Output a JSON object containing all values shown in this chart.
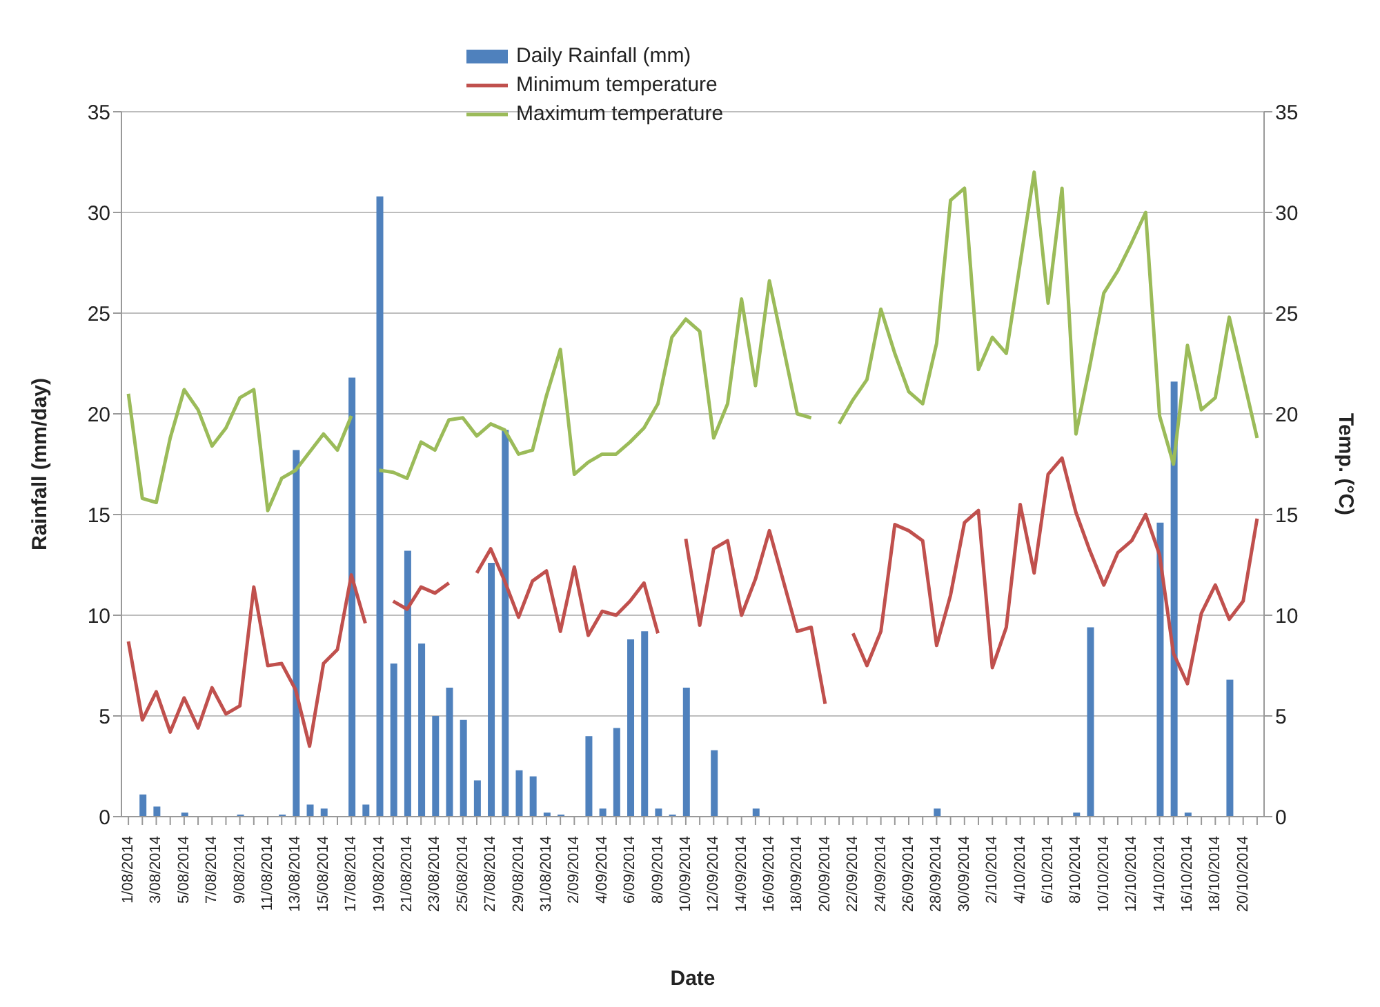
{
  "chart_data": {
    "type": "bar",
    "xlabel": "Date",
    "ylabel": "Rainfall (mm/day)",
    "y2label": "Temp. (°C)",
    "categories": [
      "1/08/2014",
      null,
      "3/08/2014",
      null,
      "5/08/2014",
      null,
      "7/08/2014",
      null,
      "9/08/2014",
      null,
      "11/08/2014",
      null,
      "13/08/2014",
      null,
      "15/08/2014",
      null,
      "17/08/2014",
      null,
      "19/08/2014",
      null,
      "21/08/2014",
      null,
      "23/08/2014",
      null,
      "25/08/2014",
      null,
      "27/08/2014",
      null,
      "29/08/2014",
      null,
      "31/08/2014",
      null,
      "2/09/2014",
      null,
      "4/09/2014",
      null,
      "6/09/2014",
      null,
      "8/09/2014",
      null,
      "10/09/2014",
      null,
      "12/09/2014",
      null,
      "14/09/2014",
      null,
      "16/09/2014",
      null,
      "18/09/2014",
      null,
      "20/09/2014",
      null,
      "22/09/2014",
      null,
      "24/09/2014",
      null,
      "26/09/2014",
      null,
      "28/09/2014",
      null,
      "30/09/2014",
      null,
      "2/10/2014",
      null,
      "4/10/2014",
      null,
      "6/10/2014",
      null,
      "8/10/2014",
      null,
      "10/10/2014",
      null,
      "12/10/2014",
      null,
      "14/10/2014",
      null,
      "16/10/2014",
      null,
      "18/10/2014",
      null,
      "20/10/2014",
      null
    ],
    "series": [
      {
        "name": "Daily Rainfall (mm)",
        "color": "#4f81bd",
        "values": [
          0,
          1.1,
          0.5,
          0,
          0.2,
          0,
          0,
          0,
          0.1,
          0,
          0,
          0.1,
          18.2,
          0.6,
          0.4,
          0,
          21.8,
          0.6,
          30.8,
          7.6,
          13.2,
          8.6,
          5.0,
          6.4,
          4.8,
          1.8,
          12.6,
          19.2,
          2.3,
          2.0,
          0.2,
          0.1,
          0,
          4.0,
          0.4,
          4.4,
          8.8,
          9.2,
          0.4,
          0.1,
          6.4,
          0,
          3.3,
          0,
          0,
          0.4,
          0,
          0,
          0,
          0,
          0,
          0,
          0,
          0,
          0,
          0,
          0,
          0,
          0.4,
          0,
          0,
          0,
          0,
          0,
          0,
          0,
          0,
          0,
          0.2,
          9.4,
          0,
          0,
          0,
          0,
          14.6,
          21.6,
          0.2,
          0,
          0,
          6.8,
          0,
          0
        ]
      },
      {
        "name": "Minimum temperature",
        "type": "line",
        "axis": "y2",
        "color": "#c0504d",
        "values": [
          8.7,
          4.8,
          6.2,
          4.2,
          5.9,
          4.4,
          6.4,
          5.1,
          5.5,
          11.4,
          7.5,
          7.6,
          6.3,
          3.5,
          7.6,
          8.3,
          12.0,
          9.6,
          null,
          10.7,
          10.3,
          11.4,
          11.1,
          11.6,
          null,
          12.1,
          13.3,
          11.7,
          9.9,
          11.7,
          12.2,
          9.2,
          12.4,
          9.0,
          10.2,
          10.0,
          10.7,
          11.6,
          9.1,
          null,
          13.8,
          9.5,
          13.3,
          13.7,
          10.0,
          11.8,
          14.2,
          11.7,
          9.2,
          9.4,
          5.6,
          null,
          9.1,
          7.5,
          9.2,
          14.5,
          14.2,
          13.7,
          8.5,
          11.0,
          14.6,
          15.2,
          7.4,
          9.4,
          15.5,
          12.1,
          17.0,
          17.8,
          15.1,
          13.2,
          11.5,
          13.1,
          13.7,
          15.0,
          13.0,
          8.1,
          6.6,
          10.1,
          11.5,
          9.8,
          10.7,
          14.8
        ]
      },
      {
        "name": "Maximum temperature",
        "type": "line",
        "axis": "y2",
        "color": "#9bbb59",
        "values": [
          21.0,
          15.8,
          15.6,
          18.8,
          21.2,
          20.2,
          18.4,
          19.3,
          20.8,
          21.2,
          15.2,
          16.8,
          17.2,
          18.1,
          19.0,
          18.2,
          19.9,
          null,
          17.2,
          17.1,
          16.8,
          18.6,
          18.2,
          19.7,
          19.8,
          18.9,
          19.5,
          19.2,
          18.0,
          18.2,
          20.9,
          23.2,
          17.0,
          17.6,
          18.0,
          18.0,
          18.6,
          19.3,
          20.5,
          23.8,
          24.7,
          24.1,
          18.8,
          20.5,
          25.7,
          21.4,
          26.6,
          23.3,
          20.0,
          19.8,
          null,
          19.5,
          20.7,
          21.7,
          25.2,
          23.0,
          21.1,
          20.5,
          23.5,
          30.6,
          31.2,
          22.2,
          23.8,
          23.0,
          27.5,
          32.0,
          25.5,
          31.2,
          19.0,
          22.4,
          26.0,
          27.1,
          28.5,
          30.0,
          19.9,
          17.5,
          23.4,
          20.2,
          20.8,
          24.8,
          21.8,
          18.8
        ]
      }
    ],
    "ylim": [
      0,
      35
    ],
    "yticks": [
      0,
      5,
      10,
      15,
      20,
      25,
      30,
      35
    ],
    "y2lim": [
      0,
      35
    ],
    "y2ticks": [
      0,
      5,
      10,
      15,
      20,
      25,
      30,
      35
    ],
    "grid": "y",
    "legend": "top",
    "marker": "none",
    "line_style": "solid"
  }
}
